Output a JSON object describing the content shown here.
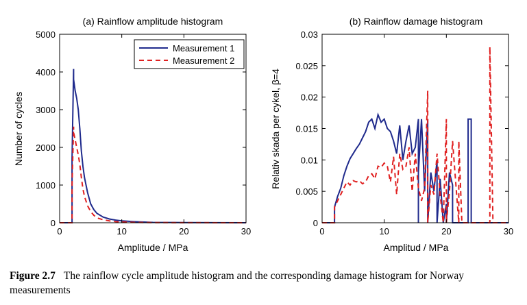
{
  "chart_data": [
    {
      "type": "line",
      "title": "(a) Rainflow amplitude histogram",
      "xlabel": "Amplitude / MPa",
      "ylabel": "Number of cycles",
      "xlim": [
        0,
        30
      ],
      "ylim": [
        0,
        5000
      ],
      "xticks": [
        0,
        10,
        20,
        30
      ],
      "yticks": [
        0,
        1000,
        2000,
        3000,
        4000,
        5000
      ],
      "grid": false,
      "legend_position": "top-right",
      "series": [
        {
          "name": "Measurement 1",
          "color": "#1f2a8c",
          "style": "solid",
          "x": [
            0,
            2.0,
            2.0,
            2.25,
            2.25,
            2.5,
            2.75,
            3.0,
            3.25,
            3.5,
            3.75,
            4.0,
            4.5,
            5.0,
            5.5,
            6.0,
            7.0,
            8.0,
            9.0,
            10.0,
            12.0,
            15.0,
            20.0,
            30.0
          ],
          "y": [
            0,
            0,
            1700,
            4080,
            3800,
            3500,
            3300,
            3000,
            2500,
            1900,
            1500,
            1200,
            800,
            500,
            350,
            250,
            150,
            100,
            70,
            50,
            30,
            10,
            5,
            0
          ]
        },
        {
          "name": "Measurement 2",
          "color": "#e02020",
          "style": "dashed",
          "x": [
            0,
            2.0,
            2.0,
            2.25,
            2.25,
            2.5,
            2.75,
            3.0,
            3.25,
            3.5,
            3.75,
            4.0,
            4.5,
            5.0,
            5.5,
            6.0,
            7.0,
            8.0,
            9.0,
            10.0,
            12.0,
            15.0,
            20.0,
            30.0
          ],
          "y": [
            0,
            0,
            1000,
            2550,
            2400,
            2200,
            2000,
            1800,
            1550,
            1200,
            900,
            700,
            450,
            300,
            200,
            130,
            80,
            50,
            30,
            20,
            10,
            5,
            2,
            0
          ]
        }
      ]
    },
    {
      "type": "line",
      "title": "(b) Rainflow damage histogram",
      "xlabel": "Amplitud / MPa",
      "ylabel": "Relativ skada per cykel, β=4",
      "xlim": [
        0,
        30
      ],
      "ylim": [
        0,
        0.03
      ],
      "xticks": [
        0,
        10,
        20,
        30
      ],
      "yticks": [
        0,
        0.005,
        0.01,
        0.015,
        0.02,
        0.025,
        0.03
      ],
      "ytick_labels": [
        "0",
        "0.005",
        "0.01",
        "0.015",
        "0.02",
        "0.025",
        "0.03"
      ],
      "grid": false,
      "series": [
        {
          "name": "Measurement 1",
          "color": "#1f2a8c",
          "style": "solid",
          "x": [
            0,
            2.0,
            2.0,
            2.5,
            3.0,
            3.5,
            4.0,
            4.5,
            5.0,
            5.5,
            6.0,
            6.5,
            7.0,
            7.5,
            8.0,
            8.5,
            9.0,
            9.5,
            10.0,
            10.5,
            11.0,
            11.5,
            12.0,
            12.5,
            13.0,
            13.5,
            14.0,
            14.5,
            15.0,
            15.5,
            15.5,
            15.5,
            16.0,
            16.5,
            17.0,
            17.0,
            17.5,
            18.0,
            18.5,
            18.5,
            19.0,
            19.5,
            20.0,
            20.0,
            20.5,
            21.0,
            21.0,
            21.5,
            22.0,
            23.5,
            23.5,
            24.0,
            24.0,
            30.0
          ],
          "y": [
            0,
            0,
            0.0025,
            0.0042,
            0.0055,
            0.0075,
            0.009,
            0.0102,
            0.011,
            0.0118,
            0.0125,
            0.0135,
            0.0145,
            0.016,
            0.0165,
            0.015,
            0.0172,
            0.016,
            0.0165,
            0.015,
            0.0145,
            0.013,
            0.011,
            0.0155,
            0.01,
            0.013,
            0.0155,
            0.011,
            0.012,
            0.0165,
            0.0,
            0.008,
            0.0165,
            0.005,
            0.0165,
            0.0,
            0.008,
            0.005,
            0.01,
            0.0,
            0.007,
            0.0,
            0.003,
            0.0,
            0.008,
            0.006,
            0.0,
            0.0,
            0.0,
            0.0,
            0.0165,
            0.0165,
            0.0,
            0.0
          ]
        },
        {
          "name": "Measurement 2",
          "color": "#e02020",
          "style": "dashed",
          "x": [
            0,
            2.0,
            2.0,
            2.5,
            3.0,
            3.5,
            4.0,
            4.5,
            5.0,
            5.5,
            6.0,
            6.5,
            7.0,
            7.5,
            8.0,
            8.5,
            9.0,
            9.5,
            10.0,
            10.5,
            11.0,
            11.5,
            12.0,
            12.5,
            13.0,
            13.5,
            14.0,
            14.5,
            15.0,
            15.5,
            16.0,
            16.5,
            17.0,
            17.0,
            17.5,
            18.0,
            18.5,
            19.0,
            19.5,
            20.0,
            20.0,
            20.5,
            21.0,
            22.0,
            22.0,
            22.5,
            27.0,
            27.0,
            27.5,
            30.0
          ],
          "y": [
            0,
            0,
            0.0025,
            0.0035,
            0.0045,
            0.0055,
            0.0065,
            0.006,
            0.0067,
            0.0065,
            0.0067,
            0.0062,
            0.0065,
            0.0075,
            0.0078,
            0.007,
            0.009,
            0.0088,
            0.0095,
            0.009,
            0.0065,
            0.0105,
            0.0045,
            0.011,
            0.0085,
            0.009,
            0.012,
            0.005,
            0.011,
            0.0055,
            0.0035,
            0.0055,
            0.021,
            0.0,
            0.006,
            0.0045,
            0.011,
            0.0045,
            0.0,
            0.0165,
            0.0,
            0.005,
            0.013,
            0.0,
            0.013,
            0.0,
            0.0,
            0.028,
            0.0,
            0.0
          ]
        }
      ]
    }
  ],
  "caption": {
    "label": "Figure 2.7",
    "text": "The rainflow cycle amplitude histogram and the corresponding damage histogram for Norway measurements"
  }
}
